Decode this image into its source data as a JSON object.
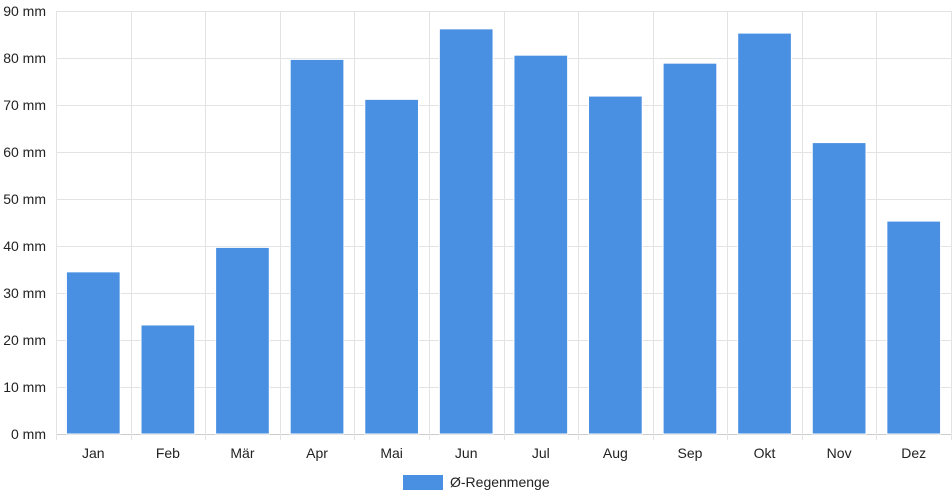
{
  "chart_data": {
    "type": "bar",
    "categories": [
      "Jan",
      "Feb",
      "Mär",
      "Apr",
      "Mai",
      "Jun",
      "Jul",
      "Aug",
      "Sep",
      "Okt",
      "Nov",
      "Dez"
    ],
    "series": [
      {
        "name": "Ø-Regenmenge",
        "values": [
          34.5,
          23.2,
          39.7,
          79.7,
          71.2,
          86.2,
          80.6,
          71.9,
          78.9,
          85.3,
          62.0,
          45.3
        ],
        "color": "#4a90e2"
      }
    ],
    "y_unit": "mm",
    "y_ticks": [
      0,
      10,
      20,
      30,
      40,
      50,
      60,
      70,
      80,
      90
    ],
    "ylim": [
      0,
      90
    ],
    "grid": true,
    "legend_position": "bottom-center",
    "colors": {
      "grid": "#e3e3e3",
      "axis": "#cccccc",
      "text": "#222222"
    }
  }
}
